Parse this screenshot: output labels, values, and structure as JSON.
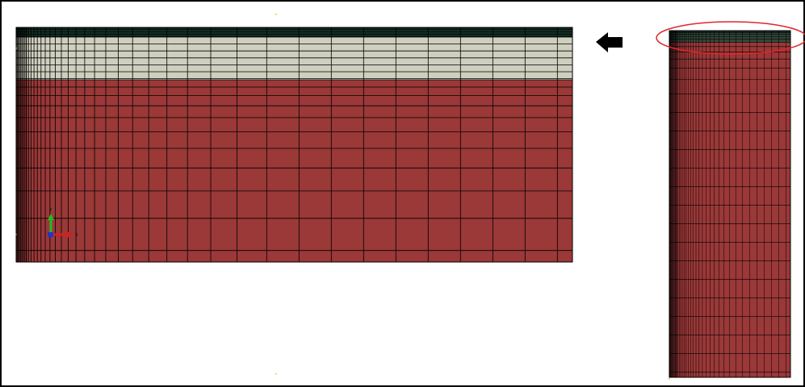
{
  "colors": {
    "background": "#ffffff",
    "frame": "#000000",
    "top_layer": "#1f4a3b",
    "middle_layer": "#cfcfbf",
    "bottom_layer": "#9b3838",
    "mesh_lines": "#000000",
    "highlight_ellipse": "#e0262b",
    "arrow": "#000000",
    "axis_y": "#22bb22",
    "axis_x": "#d42020",
    "axis_origin": "#2233cc"
  },
  "left_mesh": {
    "layers": [
      "top_layer",
      "middle_layer",
      "bottom_layer"
    ],
    "axis_triad": {
      "y_label": "Y",
      "x_label": "X"
    }
  },
  "right_mesh": {
    "highlight": "zoom-region-ellipse"
  },
  "arrow": {
    "direction": "left"
  }
}
